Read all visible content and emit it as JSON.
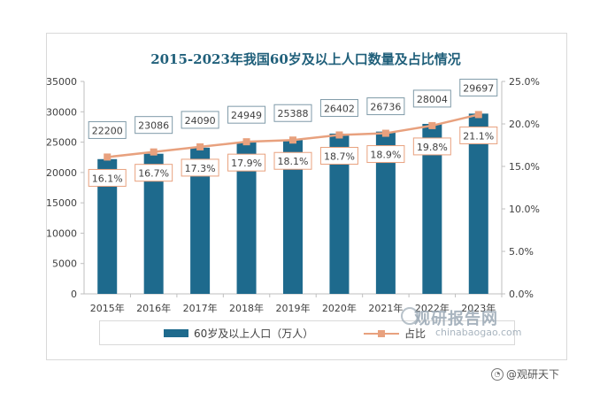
{
  "chart_data": {
    "type": "bar+line",
    "title": "2015-2023年我国60岁及以上人口数量及占比情况",
    "categories": [
      "2015年",
      "2016年",
      "2017年",
      "2018年",
      "2019年",
      "2020年",
      "2021年",
      "2022年",
      "2023年"
    ],
    "series": [
      {
        "name": "60岁及以上人口（万人）",
        "type": "bar",
        "axis": "left",
        "values": [
          22200,
          23086,
          24090,
          24949,
          25388,
          26402,
          26736,
          28004,
          29697
        ]
      },
      {
        "name": "占比",
        "type": "line",
        "axis": "right",
        "values": [
          16.1,
          16.7,
          17.3,
          17.9,
          18.1,
          18.7,
          18.9,
          19.8,
          21.1
        ],
        "labels": [
          "16.1%",
          "16.7%",
          "17.3%",
          "17.9%",
          "18.1%",
          "18.7%",
          "18.9%",
          "19.8%",
          "21.1%"
        ]
      }
    ],
    "y_left": {
      "min": 0,
      "max": 35000,
      "ticks": [
        "0",
        "5000",
        "10000",
        "15000",
        "20000",
        "25000",
        "30000",
        "35000"
      ]
    },
    "y_right": {
      "min": 0,
      "max": 25,
      "ticks": [
        "0.0%",
        "5.0%",
        "10.0%",
        "15.0%",
        "20.0%",
        "25.0%"
      ]
    },
    "legend": [
      "60岁及以上人口（万人）",
      "占比"
    ],
    "legend_position": "bottom",
    "colors": {
      "bar": "#1e6a8d",
      "line": "#e8a17e",
      "label_border": "#e8a17e",
      "value_border": "#7f9aa8"
    }
  },
  "watermark": {
    "brand": "观研报告网",
    "url": "chinabaogao.com"
  },
  "credit": "@观研天下"
}
